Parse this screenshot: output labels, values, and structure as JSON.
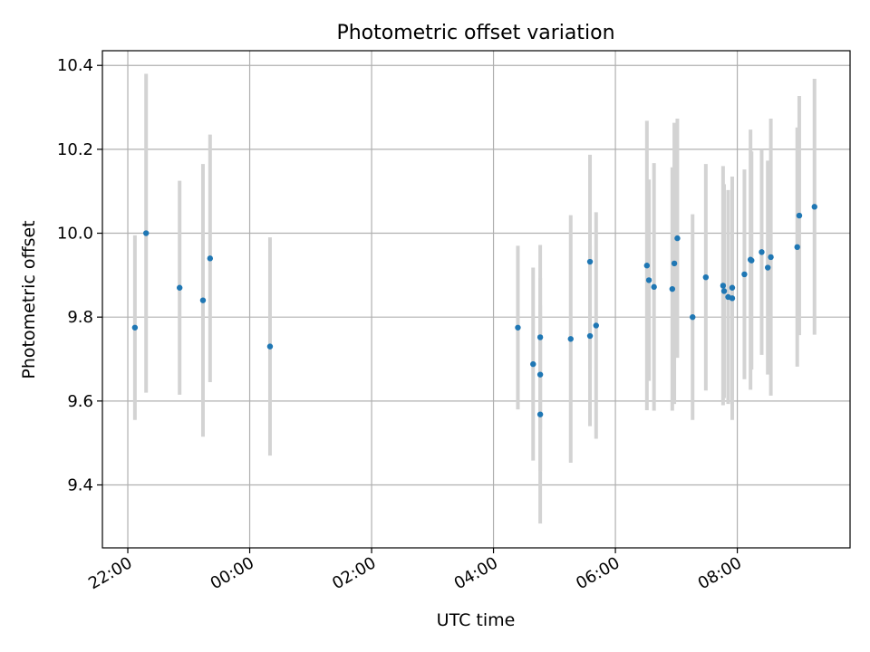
{
  "chart_data": {
    "type": "scatter",
    "title": "Photometric offset variation",
    "xlabel": "UTC time",
    "ylabel": "Photometric offset",
    "grid": true,
    "marker_color": "#1f77b4",
    "errorbar_color": "#d3d3d3",
    "xlim": [
      "21:35",
      "09:51"
    ],
    "ylim": [
      9.25,
      10.435
    ],
    "x_ticks": [
      "22:00",
      "00:00",
      "02:00",
      "04:00",
      "06:00",
      "08:00"
    ],
    "y_ticks": [
      "9.4",
      "9.6",
      "9.8",
      "10.0",
      "10.2",
      "10.4"
    ],
    "points": [
      {
        "x": "22:07",
        "y": 9.775,
        "err": 0.22
      },
      {
        "x": "22:18",
        "y": 10.0,
        "err": 0.38
      },
      {
        "x": "22:51",
        "y": 9.87,
        "err": 0.255
      },
      {
        "x": "23:14",
        "y": 9.84,
        "err": 0.325
      },
      {
        "x": "23:21",
        "y": 9.94,
        "err": 0.295
      },
      {
        "x": "00:20",
        "y": 9.73,
        "err": 0.26
      },
      {
        "x": "04:24",
        "y": 9.775,
        "err": 0.195
      },
      {
        "x": "04:39",
        "y": 9.688,
        "err": 0.23
      },
      {
        "x": "04:46",
        "y": 9.752,
        "err": 0.22
      },
      {
        "x": "04:46",
        "y": 9.663,
        "err": 0.23
      },
      {
        "x": "04:46",
        "y": 9.568,
        "err": 0.26
      },
      {
        "x": "05:16",
        "y": 9.748,
        "err": 0.295
      },
      {
        "x": "05:35",
        "y": 9.932,
        "err": 0.255
      },
      {
        "x": "05:35",
        "y": 9.755,
        "err": 0.215
      },
      {
        "x": "05:41",
        "y": 9.78,
        "err": 0.27
      },
      {
        "x": "06:31",
        "y": 9.923,
        "err": 0.345
      },
      {
        "x": "06:33",
        "y": 9.888,
        "err": 0.24
      },
      {
        "x": "06:38",
        "y": 9.872,
        "err": 0.295
      },
      {
        "x": "06:56",
        "y": 9.867,
        "err": 0.29
      },
      {
        "x": "06:58",
        "y": 9.928,
        "err": 0.335
      },
      {
        "x": "07:01",
        "y": 9.988,
        "err": 0.285
      },
      {
        "x": "07:16",
        "y": 9.8,
        "err": 0.245
      },
      {
        "x": "07:29",
        "y": 9.895,
        "err": 0.27
      },
      {
        "x": "07:46",
        "y": 9.875,
        "err": 0.285
      },
      {
        "x": "07:47",
        "y": 9.862,
        "err": 0.255
      },
      {
        "x": "07:51",
        "y": 9.848,
        "err": 0.255
      },
      {
        "x": "07:55",
        "y": 9.845,
        "err": 0.29
      },
      {
        "x": "07:55",
        "y": 9.87,
        "err": 0.265
      },
      {
        "x": "08:07",
        "y": 9.902,
        "err": 0.25
      },
      {
        "x": "08:13",
        "y": 9.937,
        "err": 0.31
      },
      {
        "x": "08:14",
        "y": 9.935,
        "err": 0.26
      },
      {
        "x": "08:24",
        "y": 9.955,
        "err": 0.245
      },
      {
        "x": "08:30",
        "y": 9.918,
        "err": 0.255
      },
      {
        "x": "08:33",
        "y": 9.943,
        "err": 0.33
      },
      {
        "x": "08:59",
        "y": 9.967,
        "err": 0.285
      },
      {
        "x": "09:01",
        "y": 10.042,
        "err": 0.285
      },
      {
        "x": "09:16",
        "y": 10.063,
        "err": 0.305
      }
    ]
  }
}
